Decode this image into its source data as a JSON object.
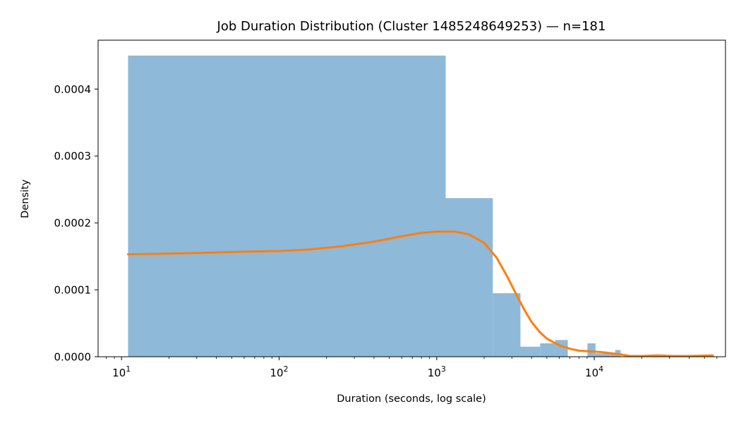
{
  "chart_data": {
    "type": "histogram",
    "title": "Job Duration Distribution (Cluster 1485248649253) — n=181",
    "xlabel": "Duration (seconds, log scale)",
    "ylabel": "Density",
    "x_scale": "log",
    "xlim": [
      7.1,
      68000
    ],
    "ylim": [
      0,
      0.000473
    ],
    "grid": false,
    "x_ticks": [
      {
        "value": 10,
        "base": "10",
        "exp": "1"
      },
      {
        "value": 100,
        "base": "10",
        "exp": "2"
      },
      {
        "value": 1000,
        "base": "10",
        "exp": "3"
      },
      {
        "value": 10000,
        "base": "10",
        "exp": "4"
      }
    ],
    "y_ticks": [
      {
        "value": 0,
        "label": "0.0000"
      },
      {
        "value": 0.0001,
        "label": "0.0001"
      },
      {
        "value": 0.0002,
        "label": "0.0002"
      },
      {
        "value": 0.0003,
        "label": "0.0003"
      },
      {
        "value": 0.0004,
        "label": "0.0004"
      }
    ],
    "bars": [
      {
        "x0": 11,
        "x1": 1140,
        "density": 0.00045
      },
      {
        "x0": 1140,
        "x1": 2270,
        "density": 0.000237
      },
      {
        "x0": 2270,
        "x1": 3400,
        "density": 9.5e-05
      },
      {
        "x0": 3400,
        "x1": 4530,
        "density": 1.5e-05
      },
      {
        "x0": 4530,
        "x1": 5660,
        "density": 2e-05
      },
      {
        "x0": 5660,
        "x1": 6790,
        "density": 2.5e-05
      },
      {
        "x0": 9050,
        "x1": 10180,
        "density": 2e-05
      },
      {
        "x0": 10180,
        "x1": 11310,
        "density": 5e-06
      },
      {
        "x0": 11310,
        "x1": 12440,
        "density": 5e-06
      },
      {
        "x0": 12440,
        "x1": 13570,
        "density": 5e-06
      },
      {
        "x0": 13570,
        "x1": 14700,
        "density": 1e-05
      },
      {
        "x0": 23750,
        "x1": 24880,
        "density": 3e-06
      },
      {
        "x0": 56500,
        "x1": 57630,
        "density": 3e-06
      }
    ],
    "kde": [
      [
        11,
        0.000153
      ],
      [
        30,
        0.000155
      ],
      [
        60,
        0.000157
      ],
      [
        100,
        0.000158
      ],
      [
        150,
        0.00016
      ],
      [
        250,
        0.000165
      ],
      [
        400,
        0.000172
      ],
      [
        600,
        0.00018
      ],
      [
        800,
        0.000185
      ],
      [
        1000,
        0.000187
      ],
      [
        1300,
        0.000187
      ],
      [
        1600,
        0.000183
      ],
      [
        2000,
        0.00017
      ],
      [
        2400,
        0.000148
      ],
      [
        2800,
        0.00012
      ],
      [
        3200,
        9.3e-05
      ],
      [
        3600,
        7e-05
      ],
      [
        4000,
        5.2e-05
      ],
      [
        4500,
        3.7e-05
      ],
      [
        5000,
        2.7e-05
      ],
      [
        6000,
        1.7e-05
      ],
      [
        7000,
        1.2e-05
      ],
      [
        8000,
        9e-06
      ],
      [
        9500,
        8e-06
      ],
      [
        11000,
        7e-06
      ],
      [
        13000,
        5e-06
      ],
      [
        15000,
        3e-06
      ],
      [
        17000,
        1e-06
      ],
      [
        20000,
        1e-06
      ],
      [
        25000,
        2e-06
      ],
      [
        32000,
        1e-06
      ],
      [
        40000,
        1e-06
      ],
      [
        56000,
        2e-06
      ]
    ],
    "colors": {
      "bars": "#8fb9d8",
      "kde": "#ff7f0e"
    }
  }
}
